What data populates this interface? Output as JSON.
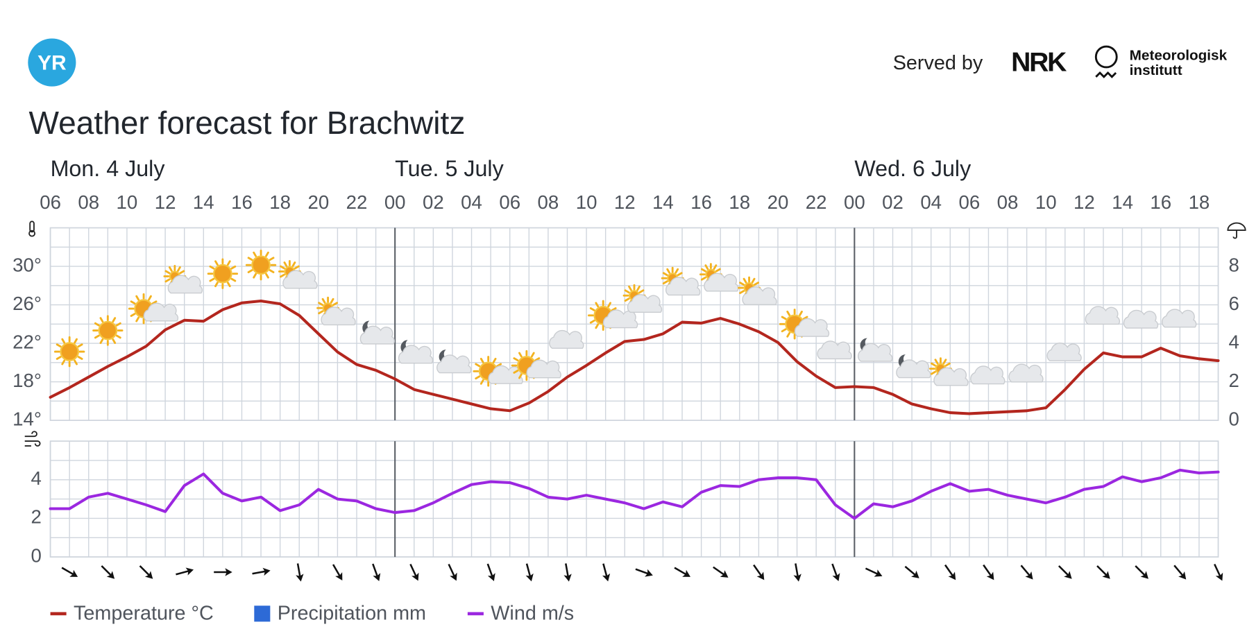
{
  "header": {
    "logo": "YR",
    "served_by": "Served by",
    "partner": "NRK",
    "institute": [
      "Meteorologisk",
      "institutt"
    ],
    "title": "Weather forecast for Brachwitz"
  },
  "chart_data": [
    {
      "type": "line",
      "x": [
        6,
        7,
        8,
        9,
        10,
        11,
        12,
        13,
        14,
        15,
        16,
        17,
        18,
        19,
        20,
        21,
        22,
        23,
        24,
        25,
        26,
        27,
        28,
        29,
        30,
        31,
        32,
        33,
        34,
        35,
        36,
        37,
        38,
        39,
        40,
        41,
        42,
        43,
        44,
        45,
        46,
        47,
        48,
        49,
        50,
        51,
        52,
        53,
        54,
        55,
        56,
        57,
        58,
        59,
        60,
        61,
        62,
        63,
        64,
        65,
        66,
        67
      ],
      "xlim": [
        6,
        67
      ],
      "xticks": [
        {
          "value": 6,
          "label": "06"
        },
        {
          "value": 8,
          "label": "08"
        },
        {
          "value": 10,
          "label": "10"
        },
        {
          "value": 12,
          "label": "12"
        },
        {
          "value": 14,
          "label": "14"
        },
        {
          "value": 16,
          "label": "16"
        },
        {
          "value": 18,
          "label": "18"
        },
        {
          "value": 20,
          "label": "20"
        },
        {
          "value": 22,
          "label": "22"
        },
        {
          "value": 24,
          "label": "00"
        },
        {
          "value": 26,
          "label": "02"
        },
        {
          "value": 28,
          "label": "04"
        },
        {
          "value": 30,
          "label": "06"
        },
        {
          "value": 32,
          "label": "08"
        },
        {
          "value": 34,
          "label": "10"
        },
        {
          "value": 36,
          "label": "12"
        },
        {
          "value": 38,
          "label": "14"
        },
        {
          "value": 40,
          "label": "16"
        },
        {
          "value": 42,
          "label": "18"
        },
        {
          "value": 44,
          "label": "20"
        },
        {
          "value": 46,
          "label": "22"
        },
        {
          "value": 48,
          "label": "00"
        },
        {
          "value": 50,
          "label": "02"
        },
        {
          "value": 52,
          "label": "04"
        },
        {
          "value": 54,
          "label": "06"
        },
        {
          "value": 56,
          "label": "08"
        },
        {
          "value": 58,
          "label": "10"
        },
        {
          "value": 60,
          "label": "12"
        },
        {
          "value": 62,
          "label": "14"
        },
        {
          "value": 64,
          "label": "16"
        },
        {
          "value": 66,
          "label": "18"
        }
      ],
      "day_labels": [
        {
          "value": 6,
          "label": "Mon. 4 July"
        },
        {
          "value": 24,
          "label": "Tue. 5 July"
        },
        {
          "value": 48,
          "label": "Wed. 6 July"
        }
      ],
      "ylim": [
        14,
        34
      ],
      "yticks": [
        {
          "value": 14,
          "label": "14°"
        },
        {
          "value": 18,
          "label": "18°"
        },
        {
          "value": 22,
          "label": "22°"
        },
        {
          "value": 26,
          "label": "26°"
        },
        {
          "value": 30,
          "label": "30°"
        }
      ],
      "y2lim": [
        0,
        10
      ],
      "y2ticks": [
        0,
        2,
        4,
        6,
        8
      ],
      "grid": true,
      "series": [
        {
          "name": "Temperature °C",
          "color": "#b3261e",
          "values": [
            16.4,
            17.4,
            18.5,
            19.6,
            20.6,
            21.7,
            23.4,
            24.4,
            24.3,
            25.5,
            26.2,
            26.4,
            26.1,
            24.9,
            23.0,
            21.1,
            19.8,
            19.2,
            18.3,
            17.2,
            16.7,
            16.2,
            15.7,
            15.2,
            15.0,
            15.8,
            17.0,
            18.5,
            19.7,
            21.0,
            22.2,
            22.4,
            23.0,
            24.2,
            24.1,
            24.6,
            24.0,
            23.2,
            22.1,
            20.1,
            18.6,
            17.4,
            17.5,
            17.4,
            16.7,
            15.7,
            15.2,
            14.8,
            14.7,
            14.8,
            14.9,
            15.0,
            15.3,
            17.2,
            19.3,
            21.0,
            20.6,
            20.6,
            21.5,
            20.7,
            20.4,
            20.2
          ]
        },
        {
          "name": "Precipitation mm",
          "color": "#2d6ad6",
          "axis": "y2",
          "values": [
            0,
            0,
            0,
            0,
            0,
            0,
            0,
            0,
            0,
            0,
            0,
            0,
            0,
            0,
            0,
            0,
            0,
            0,
            0,
            0,
            0,
            0,
            0,
            0,
            0,
            0,
            0,
            0,
            0,
            0,
            0,
            0,
            0,
            0,
            0,
            0,
            0,
            0,
            0,
            0,
            0,
            0,
            0,
            0,
            0,
            0,
            0,
            0,
            0,
            0,
            0,
            0,
            0,
            0,
            0,
            0,
            0,
            0,
            0,
            0,
            0,
            0
          ]
        }
      ]
    },
    {
      "type": "line",
      "x": [
        6,
        7,
        8,
        9,
        10,
        11,
        12,
        13,
        14,
        15,
        16,
        17,
        18,
        19,
        20,
        21,
        22,
        23,
        24,
        25,
        26,
        27,
        28,
        29,
        30,
        31,
        32,
        33,
        34,
        35,
        36,
        37,
        38,
        39,
        40,
        41,
        42,
        43,
        44,
        45,
        46,
        47,
        48,
        49,
        50,
        51,
        52,
        53,
        54,
        55,
        56,
        57,
        58,
        59,
        60,
        61,
        62,
        63,
        64,
        65,
        66,
        67
      ],
      "xlim": [
        6,
        67
      ],
      "ylim": [
        0,
        6
      ],
      "yticks": [
        0,
        2,
        4
      ],
      "grid": true,
      "series": [
        {
          "name": "Wind m/s",
          "color": "#9b27e0",
          "values": [
            2.5,
            2.5,
            3.1,
            3.3,
            3.0,
            2.7,
            2.35,
            3.7,
            4.3,
            3.3,
            2.9,
            3.1,
            2.4,
            2.7,
            3.5,
            3.0,
            2.9,
            2.5,
            2.3,
            2.4,
            2.8,
            3.3,
            3.75,
            3.9,
            3.85,
            3.55,
            3.1,
            3.0,
            3.2,
            3.0,
            2.8,
            2.5,
            2.85,
            2.6,
            3.35,
            3.7,
            3.65,
            4.0,
            4.1,
            4.1,
            4.0,
            2.7,
            2.0,
            2.75,
            2.6,
            2.9,
            3.4,
            3.8,
            3.4,
            3.5,
            3.2,
            3.0,
            2.8,
            3.1,
            3.5,
            3.65,
            4.15,
            3.9,
            4.1,
            4.5,
            4.35,
            4.4
          ]
        }
      ]
    }
  ]
}
